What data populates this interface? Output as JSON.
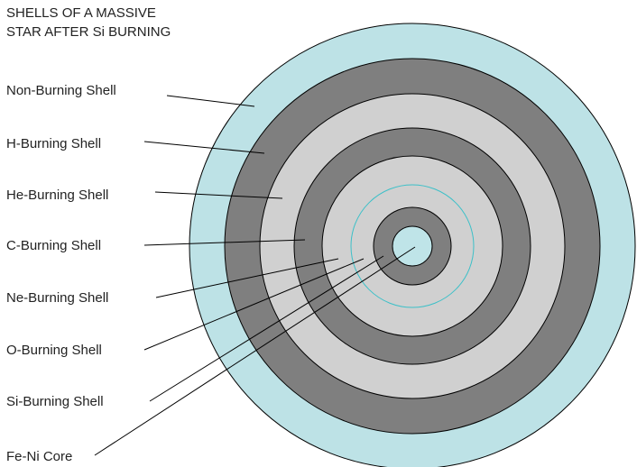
{
  "title": [
    "SHELLS OF A MASSIVE",
    "STAR AFTER Si BURNING"
  ],
  "labels": [
    "Non-Burning Shell",
    "H-Burning Shell",
    "He-Burning Shell",
    "C-Burning Shell",
    "Ne-Burning Shell",
    "O-Burning Shell",
    "Si-Burning Shell",
    "Fe-Ni Core"
  ]
}
